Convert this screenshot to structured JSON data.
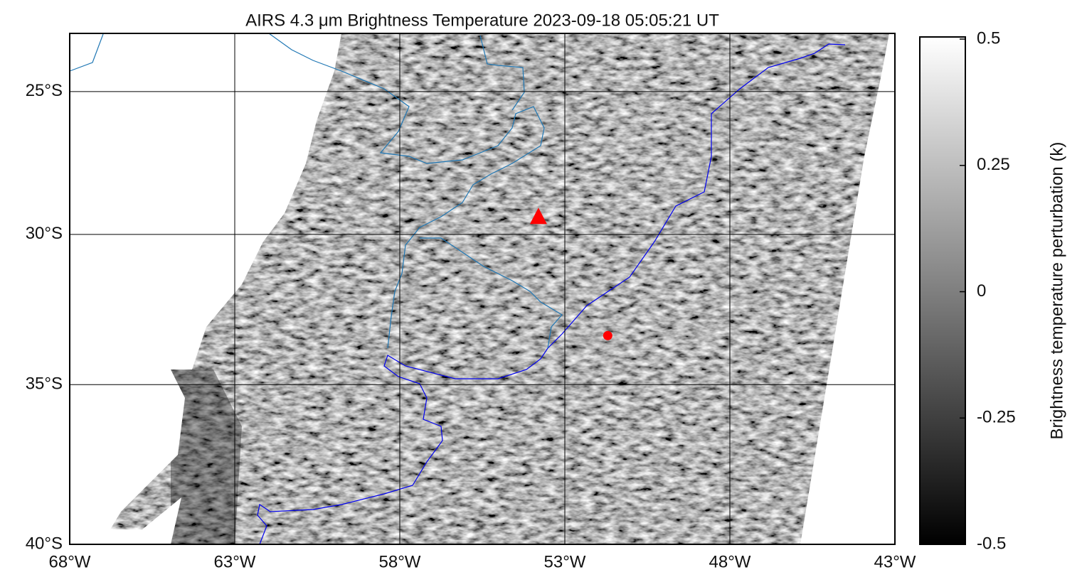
{
  "chart_data": {
    "type": "map",
    "title": "AIRS 4.3 μm Brightness Temperature 2023-09-18 05:05:21 UT",
    "projection": "mercator",
    "xlim": [
      -68,
      -43
    ],
    "ylim": [
      -40,
      -22.9
    ],
    "xticks": [
      {
        "value": -68,
        "label": "68°W"
      },
      {
        "value": -63,
        "label": "63°W"
      },
      {
        "value": -58,
        "label": "58°W"
      },
      {
        "value": -53,
        "label": "53°W"
      },
      {
        "value": -48,
        "label": "48°W"
      },
      {
        "value": -43,
        "label": "43°W"
      }
    ],
    "yticks": [
      {
        "value": -40,
        "label": "40°S"
      },
      {
        "value": -35,
        "label": "35°S"
      },
      {
        "value": -30,
        "label": "30°S"
      },
      {
        "value": -25,
        "label": "25°S"
      }
    ],
    "grid": true,
    "series": [
      {
        "x": [
          -53.8
        ],
        "values": [
          -29.4
        ],
        "marker": "triangle",
        "color": "#ff0000"
      },
      {
        "x": [
          -51.7
        ],
        "values": [
          -33.4
        ],
        "marker": "circle",
        "color": "#ff0000"
      }
    ],
    "colorbar": {
      "label": "Brightness temperature perturbation (k)",
      "lim": [
        -0.5,
        0.5
      ],
      "ticks": [
        -0.5,
        -0.25,
        0,
        0.25,
        0.5
      ]
    }
  }
}
